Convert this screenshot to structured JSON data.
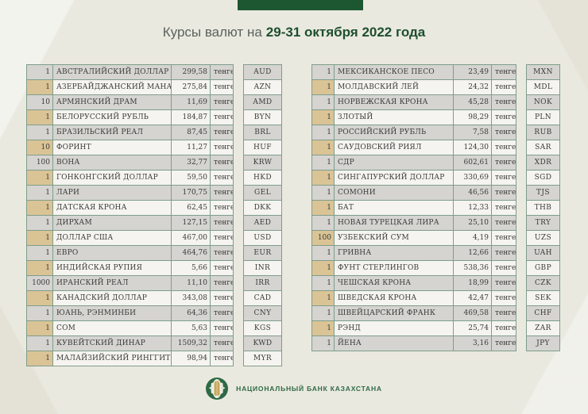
{
  "header": {
    "title_prefix": "Курсы валют на",
    "title_bold": "29-31 октября 2022 года"
  },
  "tables": {
    "left": {
      "rows": [
        {
          "amount": "1",
          "name": "АВСТРАЛИЙСКИЙ ДОЛЛАР",
          "rate": "299,58",
          "unit": "тенге",
          "code": "AUD"
        },
        {
          "amount": "1",
          "name": "АЗЕРБАЙДЖАНСКИЙ МАНАТ",
          "rate": "275,84",
          "unit": "тенге",
          "code": "AZN"
        },
        {
          "amount": "10",
          "name": "АРМЯНСКИЙ ДРАМ",
          "rate": "11,69",
          "unit": "тенге",
          "code": "AMD"
        },
        {
          "amount": "1",
          "name": "БЕЛОРУССКИЙ РУБЛЬ",
          "rate": "184,87",
          "unit": "тенге",
          "code": "BYN"
        },
        {
          "amount": "1",
          "name": "БРАЗИЛЬСКИЙ РЕАЛ",
          "rate": "87,45",
          "unit": "тенге",
          "code": "BRL"
        },
        {
          "amount": "10",
          "name": "ФОРИНТ",
          "rate": "11,27",
          "unit": "тенге",
          "code": "HUF"
        },
        {
          "amount": "100",
          "name": "ВОНА",
          "rate": "32,77",
          "unit": "тенге",
          "code": "KRW"
        },
        {
          "amount": "1",
          "name": "ГОНКОНГСКИЙ ДОЛЛАР",
          "rate": "59,50",
          "unit": "тенге",
          "code": "HKD"
        },
        {
          "amount": "1",
          "name": "ЛАРИ",
          "rate": "170,75",
          "unit": "тенге",
          "code": "GEL"
        },
        {
          "amount": "1",
          "name": "ДАТСКАЯ КРОНА",
          "rate": "62,45",
          "unit": "тенге",
          "code": "DKK"
        },
        {
          "amount": "1",
          "name": "ДИРХАМ",
          "rate": "127,15",
          "unit": "тенге",
          "code": "AED"
        },
        {
          "amount": "1",
          "name": "ДОЛЛАР США",
          "rate": "467,00",
          "unit": "тенге",
          "code": "USD"
        },
        {
          "amount": "1",
          "name": "ЕВРО",
          "rate": "464,76",
          "unit": "тенге",
          "code": "EUR"
        },
        {
          "amount": "1",
          "name": "ИНДИЙСКАЯ РУПИЯ",
          "rate": "5,66",
          "unit": "тенге",
          "code": "INR"
        },
        {
          "amount": "1000",
          "name": "ИРАНСКИЙ РЕАЛ",
          "rate": "11,10",
          "unit": "тенге",
          "code": "IRR"
        },
        {
          "amount": "1",
          "name": "КАНАДСКИЙ ДОЛЛАР",
          "rate": "343,08",
          "unit": "тенге",
          "code": "CAD"
        },
        {
          "amount": "1",
          "name": "ЮАНЬ, РЭНМИНБИ",
          "rate": "64,36",
          "unit": "тенге",
          "code": "CNY"
        },
        {
          "amount": "1",
          "name": "СОМ",
          "rate": "5,63",
          "unit": "тенге",
          "code": "KGS"
        },
        {
          "amount": "1",
          "name": "КУВЕЙТСКИЙ ДИНАР",
          "rate": "1509,32",
          "unit": "тенге",
          "code": "KWD"
        },
        {
          "amount": "1",
          "name": "МАЛАЙЗИЙСКИЙ РИНГГИТ",
          "rate": "98,94",
          "unit": "тенге",
          "code": "MYR"
        }
      ]
    },
    "right": {
      "rows": [
        {
          "amount": "1",
          "name": "МЕКСИКАНСКОЕ ПЕСО",
          "rate": "23,49",
          "unit": "тенге",
          "code": "MXN"
        },
        {
          "amount": "1",
          "name": "МОЛДАВСКИЙ ЛЕЙ",
          "rate": "24,32",
          "unit": "тенге",
          "code": "MDL"
        },
        {
          "amount": "1",
          "name": "НОРВЕЖСКАЯ КРОНА",
          "rate": "45,28",
          "unit": "тенге",
          "code": "NOK"
        },
        {
          "amount": "1",
          "name": "ЗЛОТЫЙ",
          "rate": "98,29",
          "unit": "тенге",
          "code": "PLN"
        },
        {
          "amount": "1",
          "name": "РОССИЙСКИЙ РУБЛЬ",
          "rate": "7,58",
          "unit": "тенге",
          "code": "RUB"
        },
        {
          "amount": "1",
          "name": "САУДОВСКИЙ РИЯЛ",
          "rate": "124,30",
          "unit": "тенге",
          "code": "SAR"
        },
        {
          "amount": "1",
          "name": "СДР",
          "rate": "602,61",
          "unit": "тенге",
          "code": "XDR"
        },
        {
          "amount": "1",
          "name": "СИНГАПУРСКИЙ ДОЛЛАР",
          "rate": "330,69",
          "unit": "тенге",
          "code": "SGD"
        },
        {
          "amount": "1",
          "name": "СОМОНИ",
          "rate": "46,56",
          "unit": "тенге",
          "code": "TJS"
        },
        {
          "amount": "1",
          "name": "БАТ",
          "rate": "12,33",
          "unit": "тенге",
          "code": "THB"
        },
        {
          "amount": "1",
          "name": "НОВАЯ ТУРЕЦКАЯ ЛИРА",
          "rate": "25,10",
          "unit": "тенге",
          "code": "TRY"
        },
        {
          "amount": "100",
          "name": "УЗБЕКСКИЙ СУМ",
          "rate": "4,19",
          "unit": "тенге",
          "code": "UZS"
        },
        {
          "amount": "1",
          "name": "ГРИВНА",
          "rate": "12,66",
          "unit": "тенге",
          "code": "UAH"
        },
        {
          "amount": "1",
          "name": "ФУНТ СТЕРЛИНГОВ",
          "rate": "538,36",
          "unit": "тенге",
          "code": "GBP"
        },
        {
          "amount": "1",
          "name": "ЧЕШСКАЯ КРОНА",
          "rate": "18,99",
          "unit": "тенге",
          "code": "CZK"
        },
        {
          "amount": "1",
          "name": "ШВЕДСКАЯ КРОНА",
          "rate": "42,47",
          "unit": "тенге",
          "code": "SEK"
        },
        {
          "amount": "1",
          "name": "ШВЕЙЦАРСКИЙ ФРАНК",
          "rate": "469,58",
          "unit": "тенге",
          "code": "CHF"
        },
        {
          "amount": "1",
          "name": "РЭНД",
          "rate": "25,74",
          "unit": "тенге",
          "code": "ZAR"
        },
        {
          "amount": "1",
          "name": "ЙЕНА",
          "rate": "3,16",
          "unit": "тенге",
          "code": "JPY"
        }
      ]
    }
  },
  "footer": {
    "bank_name": "НАЦИОНАЛЬНЫЙ БАНК КАЗАХСТАНА"
  },
  "colors": {
    "background": "#eae9e0",
    "green_bar": "#1d5732",
    "title_gray": "#5a625c",
    "title_green": "#1d4f2e",
    "table_border": "#7f9d8a",
    "row_gray": "#d5d4d1",
    "row_light": "#f5f4f0",
    "amount_tan": "#dac496",
    "bank_green": "#2e6a45",
    "emblem_gold": "#c9a75a"
  }
}
